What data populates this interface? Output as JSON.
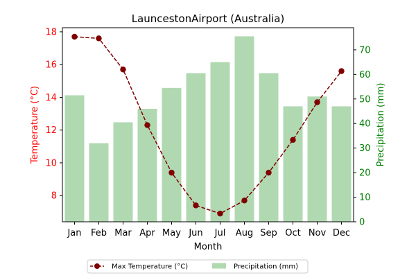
{
  "chart_data": {
    "type": "bar+line",
    "title": "LauncestonAirport (Australia)",
    "xlabel": "Month",
    "ylabel_left": "Temperature (°C)",
    "ylabel_right": "Precipitation (mm)",
    "categories": [
      "Jan",
      "Feb",
      "Mar",
      "Apr",
      "May",
      "Jun",
      "Jul",
      "Aug",
      "Sep",
      "Oct",
      "Nov",
      "Dec"
    ],
    "y_left_ticks": [
      8,
      10,
      12,
      14,
      16,
      18
    ],
    "y_left_lim": [
      6.4,
      18.25
    ],
    "y_right_ticks": [
      0,
      10,
      20,
      30,
      40,
      50,
      60,
      70
    ],
    "y_right_lim": [
      0,
      79
    ],
    "series": [
      {
        "name": "Max Temperature (°C)",
        "type": "line",
        "axis": "left",
        "color": "#800000",
        "values": [
          17.7,
          17.6,
          15.7,
          12.3,
          9.4,
          7.4,
          6.9,
          7.7,
          9.4,
          11.4,
          13.7,
          15.6
        ]
      },
      {
        "name": "Precipitation (mm)",
        "type": "bar",
        "axis": "right",
        "color": "#b1d9b1",
        "values": [
          51.5,
          32,
          40.5,
          46,
          54.5,
          60.5,
          65,
          75.5,
          60.5,
          47,
          51,
          47
        ]
      }
    ],
    "left_axis_color": "#ff0000",
    "right_axis_color": "#008000",
    "legend": {
      "placement": "bottom-center",
      "ncol": 2
    },
    "grid": false
  }
}
